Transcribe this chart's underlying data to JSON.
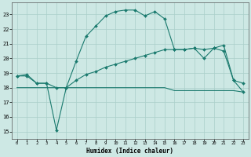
{
  "xlabel": "Humidex (Indice chaleur)",
  "x": [
    0,
    1,
    2,
    3,
    4,
    5,
    6,
    7,
    8,
    9,
    10,
    11,
    12,
    13,
    14,
    15,
    16,
    17,
    18,
    19,
    20,
    21,
    22,
    23
  ],
  "line1": [
    18.8,
    18.9,
    18.3,
    18.3,
    15.1,
    18.0,
    19.8,
    21.5,
    22.2,
    22.9,
    23.2,
    23.3,
    23.3,
    22.9,
    23.2,
    22.7,
    20.6,
    20.6,
    20.7,
    20.0,
    20.7,
    20.9,
    18.5,
    18.3
  ],
  "line2": [
    18.8,
    18.8,
    18.3,
    18.3,
    18.0,
    18.0,
    18.5,
    18.9,
    19.1,
    19.4,
    19.6,
    19.8,
    20.0,
    20.2,
    20.4,
    20.6,
    20.6,
    20.6,
    20.7,
    20.6,
    20.7,
    20.5,
    18.5,
    17.7
  ],
  "line3": [
    18.0,
    18.0,
    18.0,
    18.0,
    18.0,
    18.0,
    18.0,
    18.0,
    18.0,
    18.0,
    18.0,
    18.0,
    18.0,
    18.0,
    18.0,
    18.0,
    17.8,
    17.8,
    17.8,
    17.8,
    17.8,
    17.8,
    17.8,
    17.7
  ],
  "color": "#1a7a6e",
  "bg_color": "#cde8e4",
  "grid_color": "#aacfca",
  "ylim_min": 14.5,
  "ylim_max": 23.8,
  "yticks": [
    15,
    16,
    17,
    18,
    19,
    20,
    21,
    22,
    23
  ],
  "xticks": [
    0,
    1,
    2,
    3,
    4,
    5,
    6,
    7,
    8,
    9,
    10,
    11,
    12,
    13,
    14,
    15,
    16,
    17,
    18,
    19,
    20,
    21,
    22,
    23
  ]
}
